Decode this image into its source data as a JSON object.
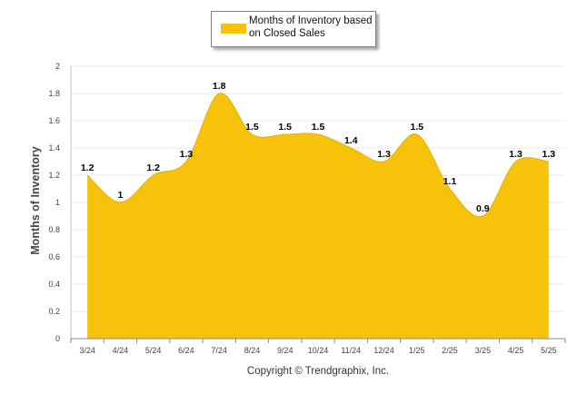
{
  "chart_data": {
    "type": "area",
    "categories": [
      "3/24",
      "4/24",
      "5/24",
      "6/24",
      "7/24",
      "8/24",
      "9/24",
      "10/24",
      "11/24",
      "12/24",
      "1/25",
      "2/25",
      "3/25",
      "4/25",
      "5/25"
    ],
    "series": [
      {
        "name": "Months of Inventory based on Closed Sales",
        "values": [
          1.2,
          1,
          1.2,
          1.3,
          1.8,
          1.5,
          1.5,
          1.5,
          1.4,
          1.3,
          1.5,
          1.1,
          0.9,
          1.3,
          1.3
        ]
      }
    ],
    "data_labels": [
      "1.2",
      "1",
      "1.2",
      "1.3",
      "1.8",
      "1.5",
      "1.5",
      "1.5",
      "1.4",
      "1.3",
      "1.5",
      "1.1",
      "0.9",
      "1.3",
      "1.3"
    ],
    "ylabel": "Months of Inventory",
    "xlabel": "",
    "ylim": [
      0,
      2
    ],
    "yticks": [
      "0",
      "0.2",
      "0.4",
      "0.6",
      "0.8",
      "1",
      "1.2",
      "1.4",
      "1.6",
      "1.8",
      "2"
    ],
    "grid": true,
    "legend_position": "top-center",
    "color": "#f6c30a"
  },
  "legend": {
    "label": "Months of Inventory based on Closed Sales"
  },
  "axis": {
    "ylabel": "Months of Inventory"
  },
  "footer": {
    "copyright": "Copyright © Trendgraphix, Inc."
  }
}
